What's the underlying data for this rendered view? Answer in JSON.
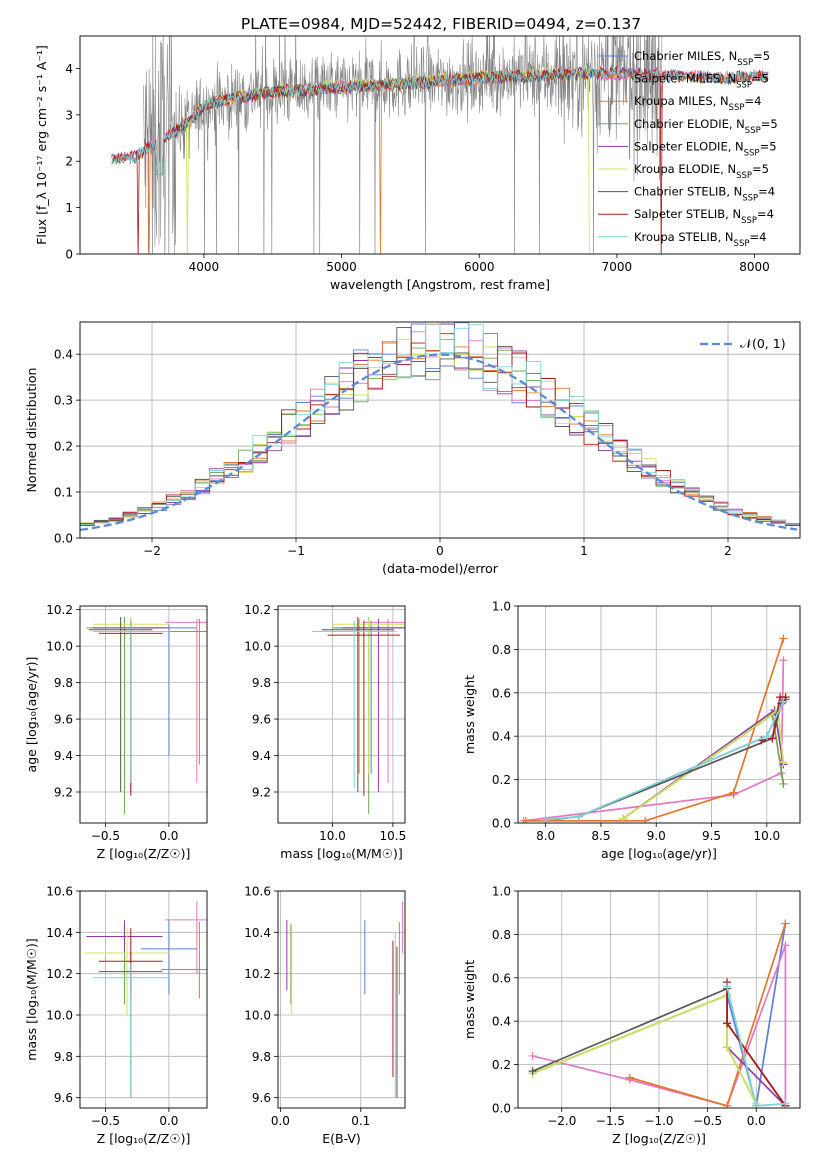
{
  "figure_title": "PLATE=0984, MJD=52442, FIBERID=0494, z=0.137",
  "colors": {
    "Chabrier MILES": "#5b7fd6",
    "Salpeter MILES": "#e377c2",
    "Kroupa MILES": "#e8742b",
    "Chabrier ELODIE": "#6aa84f",
    "Salpeter ELODIE": "#8e3aa8",
    "Kroupa ELODIE": "#cfe35c",
    "Chabrier STELIB": "#555555",
    "Salpeter STELIB": "#b01c1c",
    "Kroupa STELIB": "#7fd3d6",
    "data": "#808080",
    "normal": "#5b8bd6"
  },
  "chart_data": [
    {
      "id": "spectrum",
      "type": "line",
      "xlabel": "wavelength [Angstrom, rest frame]",
      "ylabel": "Flux [f_λ 10⁻¹⁷ erg cm⁻² s⁻¹ A⁻¹]",
      "xlim": [
        3100,
        8330
      ],
      "ylim": [
        0,
        4.7
      ],
      "xticks": [
        4000,
        5000,
        6000,
        7000,
        8000
      ],
      "yticks": [
        0,
        1,
        2,
        3,
        4
      ],
      "grid": false,
      "legend": "upper-right",
      "legend_entries": [
        "Chabrier MILES, N_SSP=5",
        "Salpeter MILES, N_SSP=5",
        "Kroupa MILES, N_SSP=4",
        "Chabrier ELODIE, N_SSP=5",
        "Salpeter ELODIE, N_SSP=5",
        "Kroupa ELODIE, N_SSP=5",
        "Chabrier STELIB, N_SSP=4",
        "Salpeter STELIB, N_SSP=4",
        "Kroupa STELIB, N_SSP=4"
      ],
      "continuum": {
        "x": [
          3330,
          3500,
          3700,
          3900,
          4000,
          4200,
          4500,
          4800,
          5000,
          5300,
          5600,
          6000,
          6400,
          6800,
          7000,
          7400,
          7800,
          8100
        ],
        "y": [
          2.05,
          2.1,
          2.5,
          2.85,
          3.2,
          3.35,
          3.5,
          3.55,
          3.6,
          3.65,
          3.7,
          3.8,
          3.85,
          3.9,
          3.9,
          3.85,
          3.8,
          3.85
        ]
      },
      "data_range": [
        3560,
        7330
      ]
    },
    {
      "id": "residuals",
      "type": "histogram",
      "xlabel": "(data-model)/error",
      "ylabel": "Normed distribution",
      "xlim": [
        -2.5,
        2.5
      ],
      "ylim": [
        0,
        0.47
      ],
      "xticks": [
        -2,
        -1,
        0,
        1,
        2
      ],
      "yticks": [
        0.0,
        0.1,
        0.2,
        0.3,
        0.4
      ],
      "grid": true,
      "legend": "upper-right",
      "legend_label": "𝒩(0, 1)",
      "bin_width": 0.1
    },
    {
      "id": "age_vs_Z",
      "type": "errorbar",
      "xlabel": "Z [log₁₀(Z/Z☉)]",
      "ylabel": "age  [log₁₀(age/yr)]",
      "xlim": [
        -0.7,
        0.3
      ],
      "ylim": [
        9.03,
        10.22
      ],
      "xticks": [
        -0.5,
        0.0
      ],
      "yticks": [
        9.2,
        9.4,
        9.6,
        9.8,
        10.0,
        10.2
      ],
      "grid": true,
      "points": [
        {
          "model": "Chabrier MILES",
          "x": 0.0,
          "y": 10.1,
          "xerr": 0.22,
          "ylo": 9.4,
          "yhi": 10.12
        },
        {
          "model": "Salpeter MILES",
          "x": 0.22,
          "y": 10.13,
          "xerr": 0.25,
          "ylo": 9.25,
          "yhi": 10.15
        },
        {
          "model": "Kroupa MILES",
          "x": 0.24,
          "y": 10.08,
          "xerr": 0.3,
          "ylo": 9.35,
          "yhi": 10.15
        },
        {
          "model": "Chabrier ELODIE",
          "x": -0.35,
          "y": 10.1,
          "xerr": 0.3,
          "ylo": 9.08,
          "yhi": 10.16
        },
        {
          "model": "Salpeter ELODIE",
          "x": -0.3,
          "y": 10.1,
          "xerr": 0.3,
          "ylo": 9.2,
          "yhi": 10.15
        },
        {
          "model": "Kroupa ELODIE",
          "x": -0.3,
          "y": 10.12,
          "xerr": 0.3,
          "ylo": 9.3,
          "yhi": 10.16
        },
        {
          "model": "Chabrier STELIB",
          "x": -0.38,
          "y": 10.09,
          "xerr": 0.25,
          "ylo": 9.2,
          "yhi": 10.16
        },
        {
          "model": "Salpeter STELIB",
          "x": -0.3,
          "y": 10.07,
          "xerr": 0.25,
          "ylo": 9.18,
          "yhi": 10.14
        },
        {
          "model": "Kroupa STELIB",
          "x": -0.3,
          "y": 10.08,
          "xerr": 0.3,
          "ylo": 9.25,
          "yhi": 10.14
        }
      ]
    },
    {
      "id": "age_vs_mass",
      "type": "errorbar",
      "xlabel": "mass [log₁₀(M/M☉)]",
      "ylabel": "",
      "xlim": [
        9.55,
        10.6
      ],
      "ylim": [
        9.03,
        10.22
      ],
      "xticks": [
        10.0,
        10.5
      ],
      "yticks": [
        9.2,
        9.4,
        9.6,
        9.8,
        10.0,
        10.2
      ],
      "grid": true,
      "points": [
        {
          "model": "Chabrier MILES",
          "x": 10.32,
          "y": 10.1,
          "xerr": 0.3,
          "ylo": 9.3,
          "yhi": 10.14
        },
        {
          "model": "Salpeter MILES",
          "x": 10.46,
          "y": 10.13,
          "xerr": 0.2,
          "ylo": 9.25,
          "yhi": 10.15
        },
        {
          "model": "Kroupa MILES",
          "x": 10.22,
          "y": 10.08,
          "xerr": 0.25,
          "ylo": 9.3,
          "yhi": 10.15
        },
        {
          "model": "Chabrier ELODIE",
          "x": 10.3,
          "y": 10.1,
          "xerr": 0.3,
          "ylo": 9.08,
          "yhi": 10.16
        },
        {
          "model": "Salpeter ELODIE",
          "x": 10.38,
          "y": 10.1,
          "xerr": 0.3,
          "ylo": 9.2,
          "yhi": 10.15
        },
        {
          "model": "Kroupa ELODIE",
          "x": 10.3,
          "y": 10.12,
          "xerr": 0.3,
          "ylo": 9.3,
          "yhi": 10.16
        },
        {
          "model": "Chabrier STELIB",
          "x": 10.21,
          "y": 10.09,
          "xerr": 0.3,
          "ylo": 9.2,
          "yhi": 10.16
        },
        {
          "model": "Salpeter STELIB",
          "x": 10.26,
          "y": 10.06,
          "xerr": 0.3,
          "ylo": 9.18,
          "yhi": 10.14
        },
        {
          "model": "Kroupa STELIB",
          "x": 10.18,
          "y": 10.08,
          "xerr": 0.35,
          "ylo": 9.22,
          "yhi": 10.14
        }
      ]
    },
    {
      "id": "weight_vs_age",
      "type": "line",
      "xlabel": "age  [log₁₀(age/yr)]",
      "ylabel": "mass weight",
      "xlim": [
        7.75,
        10.3
      ],
      "ylim": [
        0,
        1.0
      ],
      "xticks": [
        8.0,
        8.5,
        9.0,
        9.5,
        10.0
      ],
      "yticks": [
        0.0,
        0.2,
        0.4,
        0.6,
        0.8,
        1.0
      ],
      "grid": true,
      "series": [
        {
          "model": "Chabrier MILES",
          "x": [
            8.0,
            8.3,
            10.0,
            10.15
          ],
          "y": [
            0.01,
            0.03,
            0.4,
            0.56
          ]
        },
        {
          "model": "Salpeter MILES",
          "x": [
            7.8,
            9.7,
            10.13,
            10.15
          ],
          "y": [
            0.01,
            0.13,
            0.23,
            0.75
          ]
        },
        {
          "model": "Kroupa MILES",
          "x": [
            7.82,
            8.9,
            9.7,
            10.15
          ],
          "y": [
            0.01,
            0.01,
            0.14,
            0.85
          ]
        },
        {
          "model": "Chabrier ELODIE",
          "x": [
            8.7,
            10.05,
            10.15
          ],
          "y": [
            0.02,
            0.5,
            0.18
          ]
        },
        {
          "model": "Salpeter ELODIE",
          "x": [
            8.7,
            10.07,
            10.15
          ],
          "y": [
            0.02,
            0.52,
            0.27
          ]
        },
        {
          "model": "Kroupa ELODIE",
          "x": [
            8.7,
            10.1,
            10.15
          ],
          "y": [
            0.02,
            0.52,
            0.28
          ]
        },
        {
          "model": "Chabrier STELIB",
          "x": [
            8.3,
            10.05,
            10.13,
            10.17
          ],
          "y": [
            0.03,
            0.39,
            0.55,
            0.57
          ]
        },
        {
          "model": "Salpeter STELIB",
          "x": [
            9.95,
            10.05,
            10.12,
            10.17
          ],
          "y": [
            0.38,
            0.39,
            0.58,
            0.58
          ]
        },
        {
          "model": "Kroupa STELIB",
          "x": [
            8.0,
            8.3,
            10.0,
            10.15
          ],
          "y": [
            0.015,
            0.03,
            0.4,
            0.56
          ]
        }
      ]
    },
    {
      "id": "mass_vs_Z",
      "type": "errorbar",
      "xlabel": "Z [log₁₀(Z/Z☉)]",
      "ylabel": "mass [log₁₀(M/M☉)]",
      "xlim": [
        -0.7,
        0.3
      ],
      "ylim": [
        9.55,
        10.6
      ],
      "xticks": [
        -0.5,
        0.0
      ],
      "yticks": [
        9.6,
        9.8,
        10.0,
        10.2,
        10.4,
        10.6
      ],
      "grid": true,
      "points": [
        {
          "model": "Chabrier MILES",
          "x": 0.0,
          "y": 10.32,
          "xerr": 0.22,
          "ylo": 10.1,
          "yhi": 10.46
        },
        {
          "model": "Salpeter MILES",
          "x": 0.22,
          "y": 10.46,
          "xerr": 0.25,
          "ylo": 10.2,
          "yhi": 10.55
        },
        {
          "model": "Kroupa MILES",
          "x": 0.24,
          "y": 10.22,
          "xerr": 0.3,
          "ylo": 10.08,
          "yhi": 10.45
        },
        {
          "model": "Chabrier ELODIE",
          "x": -0.35,
          "y": 10.3,
          "xerr": 0.3,
          "ylo": 10.05,
          "yhi": 10.44
        },
        {
          "model": "Salpeter ELODIE",
          "x": -0.35,
          "y": 10.38,
          "xerr": 0.3,
          "ylo": 10.3,
          "yhi": 10.46
        },
        {
          "model": "Kroupa ELODIE",
          "x": -0.33,
          "y": 10.3,
          "xerr": 0.33,
          "ylo": 10.0,
          "yhi": 10.42
        },
        {
          "model": "Chabrier STELIB",
          "x": -0.3,
          "y": 10.21,
          "xerr": 0.25,
          "ylo": 9.6,
          "yhi": 10.3
        },
        {
          "model": "Salpeter STELIB",
          "x": -0.3,
          "y": 10.26,
          "xerr": 0.25,
          "ylo": 10.1,
          "yhi": 10.42
        },
        {
          "model": "Kroupa STELIB",
          "x": -0.3,
          "y": 10.18,
          "xerr": 0.3,
          "ylo": 9.6,
          "yhi": 10.25
        }
      ]
    },
    {
      "id": "mass_vs_ebv",
      "type": "errorbar",
      "xlabel": "E(B-V)",
      "ylabel": "",
      "xlim": [
        -0.003,
        0.155
      ],
      "ylim": [
        9.55,
        10.6
      ],
      "xticks": [
        0.0,
        0.1
      ],
      "yticks": [
        9.6,
        9.8,
        10.0,
        10.2,
        10.4,
        10.6
      ],
      "grid": true,
      "points": [
        {
          "model": "Chabrier MILES",
          "x": 0.105,
          "ylo": 10.1,
          "yhi": 10.46
        },
        {
          "model": "Salpeter MILES",
          "x": 0.152,
          "ylo": 10.3,
          "yhi": 10.55
        },
        {
          "model": "Kroupa MILES",
          "x": 0.148,
          "ylo": 10.1,
          "yhi": 10.45
        },
        {
          "model": "Chabrier ELODIE",
          "x": 0.013,
          "ylo": 10.05,
          "yhi": 10.44
        },
        {
          "model": "Salpeter ELODIE",
          "x": 0.008,
          "ylo": 10.12,
          "yhi": 10.46
        },
        {
          "model": "Kroupa ELODIE",
          "x": 0.014,
          "ylo": 10.0,
          "yhi": 10.43
        },
        {
          "model": "Chabrier STELIB",
          "x": 0.145,
          "ylo": 9.6,
          "yhi": 10.33
        },
        {
          "model": "Salpeter STELIB",
          "x": 0.14,
          "ylo": 9.7,
          "yhi": 10.36
        },
        {
          "model": "Kroupa STELIB",
          "x": 0.143,
          "ylo": 9.6,
          "yhi": 10.4
        }
      ]
    },
    {
      "id": "weight_vs_Z",
      "type": "line",
      "xlabel": "Z [log₁₀(Z/Z☉)]",
      "ylabel": "mass weight",
      "xlim": [
        -2.45,
        0.45
      ],
      "ylim": [
        0,
        1.0
      ],
      "xticks": [
        -2.0,
        -1.5,
        -1.0,
        -0.5,
        0.0
      ],
      "yticks": [
        0.0,
        0.2,
        0.4,
        0.6,
        0.8,
        1.0
      ],
      "grid": true,
      "series": [
        {
          "model": "Chabrier MILES",
          "x": [
            -2.3,
            -0.3,
            0.0,
            0.3
          ],
          "y": [
            0.16,
            0.52,
            0.01,
            0.85
          ]
        },
        {
          "model": "Salpeter MILES",
          "x": [
            -2.3,
            -1.3,
            -0.3,
            0.3,
            0.3
          ],
          "y": [
            0.24,
            0.13,
            0.01,
            0.75,
            0.01
          ]
        },
        {
          "model": "Kroupa MILES",
          "x": [
            -1.3,
            -0.3,
            0.3
          ],
          "y": [
            0.14,
            0.01,
            0.85
          ]
        },
        {
          "model": "Chabrier ELODIE",
          "x": [
            -2.3,
            -0.3,
            -0.3,
            0.0
          ],
          "y": [
            0.16,
            0.52,
            0.28,
            0.02
          ]
        },
        {
          "model": "Salpeter ELODIE",
          "x": [
            -0.3,
            0.3
          ],
          "y": [
            0.28,
            0.01
          ]
        },
        {
          "model": "Kroupa ELODIE",
          "x": [
            -2.3,
            -0.3,
            -0.3,
            0.0
          ],
          "y": [
            0.16,
            0.52,
            0.28,
            0.02
          ]
        },
        {
          "model": "Chabrier STELIB",
          "x": [
            -2.3,
            -0.3,
            -0.3,
            0.3
          ],
          "y": [
            0.17,
            0.55,
            0.39,
            0.01
          ]
        },
        {
          "model": "Salpeter STELIB",
          "x": [
            -0.3,
            -0.3,
            0.3
          ],
          "y": [
            0.58,
            0.39,
            0.01
          ]
        },
        {
          "model": "Kroupa STELIB",
          "x": [
            -0.3,
            0.0,
            0.3
          ],
          "y": [
            0.56,
            0.01,
            0.02
          ]
        }
      ]
    }
  ]
}
